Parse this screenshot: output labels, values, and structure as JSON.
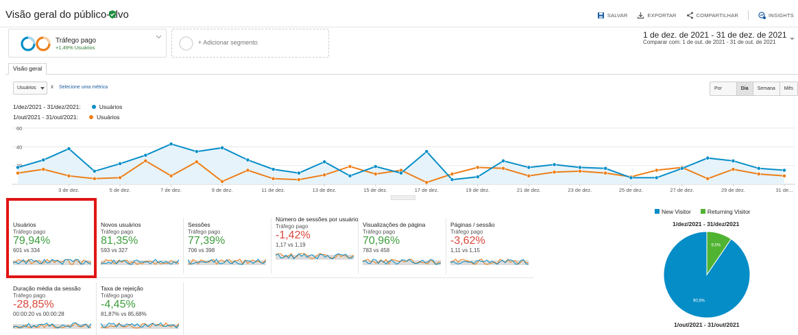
{
  "header": {
    "title": "Visão geral do público-alvo",
    "actions": {
      "save": "SALVAR",
      "export": "EXPORTAR",
      "share": "COMPARTILHAR",
      "insights": "INSIGHTS"
    }
  },
  "segment": {
    "name": "Tráfego pago",
    "sub": "+1,49% Usuários"
  },
  "add_segment": "+ Adicionar segmento",
  "date": {
    "range": "1 de dez. de 2021 - 31 de dez. de 2021",
    "compare_label": "Comparar com:",
    "compare_range": "1 de out. de 2021 - 31 de out. de 2021"
  },
  "tab": "Visão geral",
  "metric_selector": {
    "selected": "Usuários",
    "remove": "x",
    "add": "Selecione uma métrica"
  },
  "granularity": {
    "hour": "Por hora",
    "day": "Dia",
    "week": "Semana",
    "month": "Mês"
  },
  "legend": [
    {
      "period": "1/dez/2021 - 31/dez/2021:",
      "metric": "Usuários",
      "color": "#058dc7"
    },
    {
      "period": "1/out/2021 - 31/out/2021:",
      "metric": "Usuários",
      "color": "#ed7e17"
    }
  ],
  "chart_data": {
    "type": "line",
    "title": "",
    "xlabel": "",
    "ylabel": "",
    "ylim": [
      0,
      60
    ],
    "yticks": [
      20,
      40,
      60
    ],
    "x": [
      "1 de dez.",
      "2 de dez.",
      "3 de dez.",
      "4 de dez.",
      "5 de dez.",
      "6 de dez.",
      "7 de dez.",
      "8 de dez.",
      "9 de dez.",
      "10 de dez.",
      "11 de dez.",
      "12 de dez.",
      "13 de dez.",
      "14 de dez.",
      "15 de dez.",
      "16 de dez.",
      "17 de dez.",
      "18 de dez.",
      "19 de dez.",
      "20 de dez.",
      "21 de dez.",
      "22 de dez.",
      "23 de dez.",
      "24 de dez.",
      "25 de dez.",
      "26 de dez.",
      "27 de dez.",
      "28 de dez.",
      "29 de dez.",
      "30 de dez.",
      "31 de dez."
    ],
    "xtick_labels": [
      "3 de dez.",
      "5 de dez.",
      "7 de dez.",
      "9 de dez.",
      "11 de dez.",
      "13 de dez.",
      "15 de dez.",
      "17 de dez.",
      "19 de dez.",
      "21 de dez.",
      "23 de dez.",
      "25 de dez.",
      "27 de dez.",
      "29 de dez.",
      "31 de..."
    ],
    "series": [
      {
        "name": "1/dez/2021 - 31/dez/2021: Usuários",
        "color": "#058dc7",
        "values": [
          18,
          26,
          38,
          14,
          22,
          31,
          43,
          35,
          39,
          26,
          16,
          12,
          24,
          9,
          19,
          12,
          35,
          5,
          8,
          25,
          18,
          21,
          18,
          17,
          7,
          7,
          17,
          28,
          25,
          17,
          15
        ]
      },
      {
        "name": "1/out/2021 - 31/out/2021: Usuários",
        "color": "#ed7e17",
        "values": [
          12,
          16,
          9,
          6,
          7,
          25,
          9,
          24,
          3,
          15,
          6,
          5,
          10,
          19,
          11,
          15,
          2,
          11,
          18,
          17,
          9,
          13,
          14,
          12,
          8,
          15,
          18,
          6,
          16,
          11,
          9
        ]
      }
    ]
  },
  "scorecards": [
    {
      "title": "Usuários",
      "segment": "Tráfego pago",
      "value": "79,94%",
      "trend": "pos",
      "compare": "601 vs 334"
    },
    {
      "title": "Novos usuários",
      "segment": "Tráfego pago",
      "value": "81,35%",
      "trend": "pos",
      "compare": "593 vs 327"
    },
    {
      "title": "Sessões",
      "segment": "Tráfego pago",
      "value": "77,39%",
      "trend": "pos",
      "compare": "706 vs 398"
    },
    {
      "title": "Número de sessões por usuário",
      "segment": "Tráfego pago",
      "value": "-1,42%",
      "trend": "neg",
      "compare": "1,17 vs 1,19"
    },
    {
      "title": "Visualizações de página",
      "segment": "Tráfego pago",
      "value": "70,96%",
      "trend": "pos",
      "compare": "783 vs 458"
    },
    {
      "title": "Páginas / sessão",
      "segment": "Tráfego pago",
      "value": "-3,62%",
      "trend": "neg",
      "compare": "1,11 vs 1,15"
    },
    {
      "title": "Duração média da sessão",
      "segment": "Tráfego pago",
      "value": "-28,85%",
      "trend": "neg",
      "compare": "00:00:20 vs 00:00:28"
    },
    {
      "title": "Taxa de rejeição",
      "segment": "Tráfego pago",
      "value": "-4,45%",
      "trend": "pos",
      "compare": "81,87% vs 85,68%"
    }
  ],
  "pie": {
    "legend": [
      {
        "label": "New Visitor",
        "color": "#058dc7"
      },
      {
        "label": "Returning Visitor",
        "color": "#50b432"
      }
    ],
    "period_top": "1/dez/2021 - 31/dez/2021",
    "period_bottom": "1/out/2021 - 31/out/2021",
    "slices": [
      {
        "label": "90,5%",
        "value": 90.5,
        "color": "#058dc7"
      },
      {
        "label": "9,5%",
        "value": 9.5,
        "color": "#50b432"
      }
    ]
  }
}
